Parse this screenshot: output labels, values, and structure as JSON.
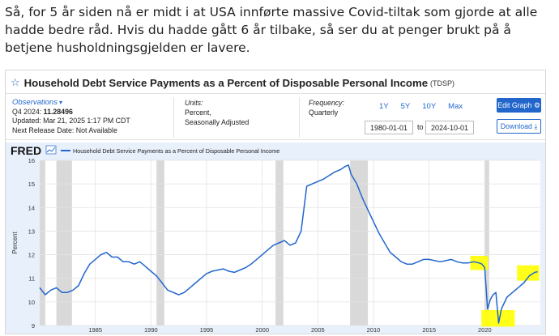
{
  "post": {
    "text": "Så, for 5 år siden nå er midt i at USA innførte massive Covid-tiltak som gjorde at alle hadde bedre råd. Hvis du hadde gått 6 år tilbake, så ser du at penger brukt på å betjene husholdningsgjelden er lavere."
  },
  "fred": {
    "title": "Household Debt Service Payments as a Percent of Disposable Personal Income",
    "series_code": "(TDSP)",
    "observations_label": "Observations",
    "latest_period": "Q4 2024:",
    "latest_value": "11.28496",
    "updated": "Updated: Mar 21, 2025 1:17 PM CDT",
    "next_release": "Next Release Date: Not Available",
    "units_label": "Units:",
    "units_line1": "Percent,",
    "units_line2": "Seasonally Adjusted",
    "frequency_label": "Frequency:",
    "frequency_value": "Quarterly",
    "range_buttons": [
      "1Y",
      "5Y",
      "10Y",
      "Max"
    ],
    "start_date": "1980-01-01",
    "to_label": "to",
    "end_date": "2024-10-01",
    "edit_graph": "Edit Graph",
    "download": "Download",
    "accent_color": "#2266cc",
    "line_color": "#2266cc",
    "recession_color": "#d9d9d9",
    "highlight_color": "#ffff00"
  },
  "chart_data": {
    "type": "line",
    "brand": "FRED",
    "legend": "Household Debt Service Payments as a Percent of Disposable Personal Income",
    "ylabel": "Percent",
    "xlim": [
      1980.0,
      2025.0
    ],
    "ylim": [
      9,
      16
    ],
    "yticks": [
      9,
      10,
      11,
      12,
      13,
      14,
      15,
      16
    ],
    "xticks": [
      1985,
      1990,
      1995,
      2000,
      2005,
      2010,
      2015,
      2020
    ],
    "recessions": [
      [
        1980.0,
        1980.5
      ],
      [
        1981.5,
        1982.9
      ],
      [
        1990.5,
        1991.2
      ],
      [
        2001.2,
        2001.9
      ],
      [
        2007.9,
        2009.5
      ],
      [
        2020.0,
        2020.4
      ]
    ],
    "highlights": [
      [
        2018.7,
        2020.3,
        11.35,
        11.95
      ],
      [
        2019.7,
        2022.7,
        8.95,
        9.65
      ],
      [
        2022.9,
        2024.9,
        10.9,
        11.55
      ]
    ],
    "series": [
      {
        "x": [
          1980.0,
          1980.5,
          1981.0,
          1981.5,
          1982.0,
          1982.5,
          1983.0,
          1983.5,
          1984.0,
          1984.5,
          1985.0,
          1985.5,
          1986.0,
          1986.5,
          1987.0,
          1987.5,
          1988.0,
          1988.5,
          1989.0,
          1989.5,
          1990.0,
          1990.5,
          1991.0,
          1991.5,
          1992.0,
          1992.5,
          1993.0,
          1993.5,
          1994.0,
          1994.5,
          1995.0,
          1995.5,
          1996.0,
          1996.5,
          1997.0,
          1997.5,
          1998.0,
          1998.5,
          1999.0,
          1999.5,
          2000.0,
          2000.5,
          2001.0,
          2001.5,
          2002.0,
          2002.5,
          2003.0,
          2003.5,
          2004.0,
          2004.5,
          2005.0,
          2005.5,
          2006.0,
          2006.5,
          2007.0,
          2007.5,
          2007.75,
          2008.0,
          2008.5,
          2009.0,
          2009.5,
          2010.0,
          2010.5,
          2011.0,
          2011.5,
          2012.0,
          2012.5,
          2013.0,
          2013.5,
          2014.0,
          2014.5,
          2015.0,
          2015.5,
          2016.0,
          2016.5,
          2017.0,
          2017.5,
          2018.0,
          2018.5,
          2019.0,
          2019.5,
          2019.75,
          2020.0,
          2020.25,
          2020.5,
          2020.75,
          2021.0,
          2021.25,
          2021.5,
          2022.0,
          2022.5,
          2023.0,
          2023.5,
          2024.0,
          2024.5,
          2024.75
        ],
        "values": [
          10.6,
          10.3,
          10.5,
          10.6,
          10.4,
          10.4,
          10.5,
          10.7,
          11.2,
          11.6,
          11.8,
          12.0,
          12.1,
          11.9,
          11.9,
          11.7,
          11.7,
          11.6,
          11.7,
          11.5,
          11.3,
          11.1,
          10.8,
          10.5,
          10.4,
          10.3,
          10.4,
          10.6,
          10.8,
          11.0,
          11.2,
          11.3,
          11.35,
          11.4,
          11.3,
          11.25,
          11.35,
          11.45,
          11.6,
          11.8,
          12.0,
          12.2,
          12.4,
          12.5,
          12.6,
          12.4,
          12.5,
          13.0,
          14.9,
          15.0,
          15.1,
          15.2,
          15.35,
          15.5,
          15.6,
          15.75,
          15.8,
          15.4,
          15.0,
          14.4,
          13.9,
          13.4,
          12.9,
          12.5,
          12.1,
          11.9,
          11.7,
          11.6,
          11.6,
          11.7,
          11.8,
          11.8,
          11.75,
          11.7,
          11.75,
          11.8,
          11.7,
          11.65,
          11.65,
          11.7,
          11.65,
          11.6,
          11.45,
          9.7,
          10.1,
          10.3,
          10.4,
          9.1,
          9.7,
          10.2,
          10.4,
          10.6,
          10.8,
          11.1,
          11.25,
          11.28
        ]
      }
    ]
  }
}
